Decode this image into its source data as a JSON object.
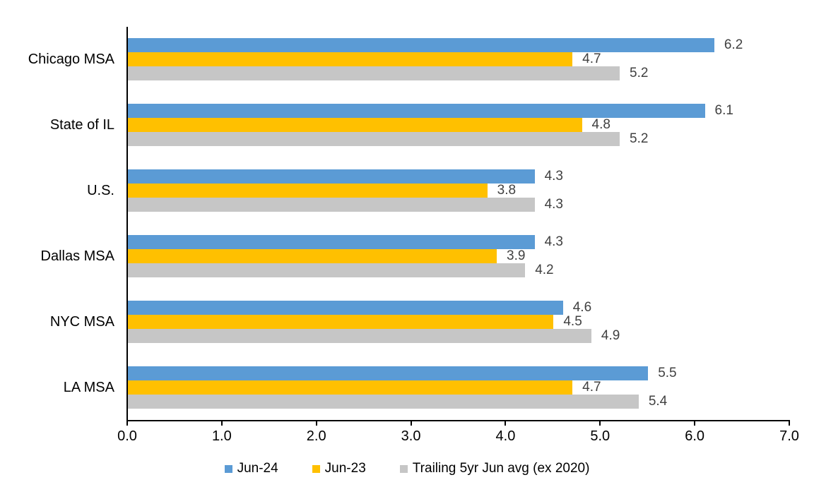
{
  "chart_data": {
    "type": "bar",
    "orientation": "horizontal",
    "title": "",
    "xlabel": "",
    "ylabel": "",
    "grid": false,
    "legend_position": "bottom",
    "value_labels_shown": true,
    "value_label_decimals": 1,
    "categories": [
      "Chicago MSA",
      "State of IL",
      "U.S.",
      "Dallas MSA",
      "NYC MSA",
      "LA MSA"
    ],
    "series": [
      {
        "name": "Jun-24",
        "color": "#5B9BD5",
        "values": [
          6.2,
          6.1,
          4.3,
          4.3,
          4.6,
          5.5
        ]
      },
      {
        "name": "Jun-23",
        "color": "#FFC000",
        "values": [
          4.7,
          4.8,
          3.8,
          3.9,
          4.5,
          4.7
        ]
      },
      {
        "name": "Trailing 5yr Jun avg (ex 2020)",
        "color": "#C6C6C6",
        "values": [
          5.2,
          5.2,
          4.3,
          4.2,
          4.9,
          5.4
        ]
      }
    ],
    "x_axis": {
      "min": 0,
      "max": 7,
      "tick_step": 1,
      "tick_labels": [
        "0.0",
        "1.0",
        "2.0",
        "3.0",
        "4.0",
        "5.0",
        "6.0",
        "7.0"
      ]
    }
  },
  "colors": {
    "background": "#FFFFFF",
    "axis": "#000000",
    "category_label": "#000000",
    "tick_label": "#000000",
    "value_label": "#404040"
  }
}
